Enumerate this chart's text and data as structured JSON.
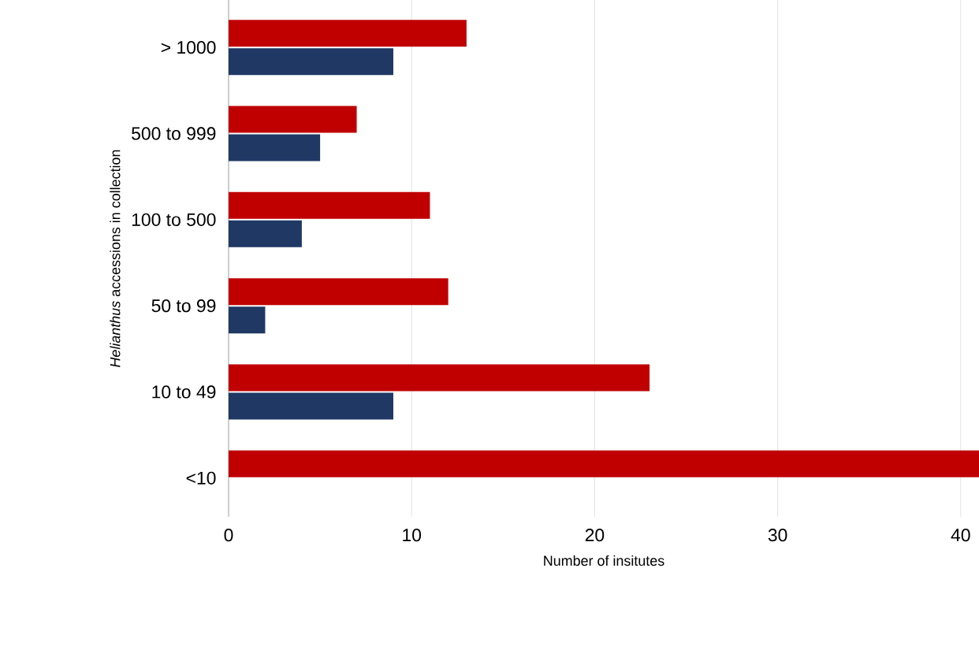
{
  "chart_data": {
    "type": "bar",
    "orientation": "horizontal",
    "xlabel": "Number of insitutes",
    "ylabel": "*Helianthus* accessions in collection",
    "categories": [
      "> 1000",
      "500 to 999",
      "100 to 500",
      "50 to 99",
      "10 to 49",
      "<10"
    ],
    "series": [
      {
        "color": "#c00000",
        "values": [
          13,
          7,
          11,
          12,
          23,
          41
        ]
      },
      {
        "color": "#1f3864",
        "values": [
          9,
          5,
          4,
          2,
          9,
          0
        ]
      }
    ],
    "xlim": [
      0,
      41
    ],
    "xticks": [
      0,
      10,
      20,
      30,
      40
    ],
    "grid": "x"
  }
}
